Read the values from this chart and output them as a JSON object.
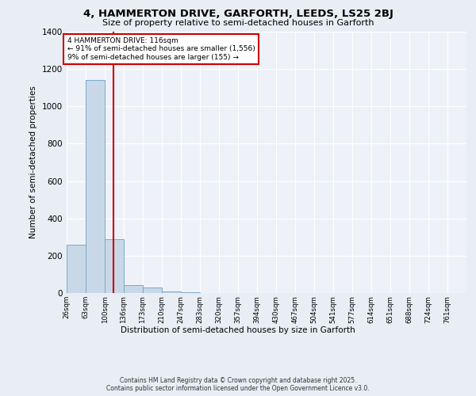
{
  "title_line1": "4, HAMMERTON DRIVE, GARFORTH, LEEDS, LS25 2BJ",
  "title_line2": "Size of property relative to semi-detached houses in Garforth",
  "xlabel": "Distribution of semi-detached houses by size in Garforth",
  "ylabel": "Number of semi-detached properties",
  "bin_labels": [
    "26sqm",
    "63sqm",
    "100sqm",
    "136sqm",
    "173sqm",
    "210sqm",
    "247sqm",
    "283sqm",
    "320sqm",
    "357sqm",
    "394sqm",
    "430sqm",
    "467sqm",
    "504sqm",
    "541sqm",
    "577sqm",
    "614sqm",
    "651sqm",
    "688sqm",
    "724sqm",
    "761sqm"
  ],
  "bin_edges": [
    26,
    63,
    100,
    136,
    173,
    210,
    247,
    283,
    320,
    357,
    394,
    430,
    467,
    504,
    541,
    577,
    614,
    651,
    688,
    724,
    761
  ],
  "bar_heights": [
    260,
    1140,
    290,
    42,
    30,
    10,
    5,
    0,
    0,
    0,
    0,
    0,
    0,
    0,
    0,
    0,
    0,
    0,
    0,
    0
  ],
  "bar_color": "#c8d8e8",
  "bar_edge_color": "#7aaac8",
  "property_size": 116,
  "red_line_color": "#cc0000",
  "annotation_text_line1": "4 HAMMERTON DRIVE: 116sqm",
  "annotation_text_line2": "← 91% of semi-detached houses are smaller (1,556)",
  "annotation_text_line3": "9% of semi-detached houses are larger (155) →",
  "annotation_box_edge": "#cc0000",
  "ylim": [
    0,
    1400
  ],
  "yticks": [
    0,
    200,
    400,
    600,
    800,
    1000,
    1200,
    1400
  ],
  "background_color": "#e8eef4",
  "plot_background": "#eef2f8",
  "grid_color": "#ffffff",
  "footer_line1": "Contains HM Land Registry data © Crown copyright and database right 2025.",
  "footer_line2": "Contains public sector information licensed under the Open Government Licence v3.0."
}
